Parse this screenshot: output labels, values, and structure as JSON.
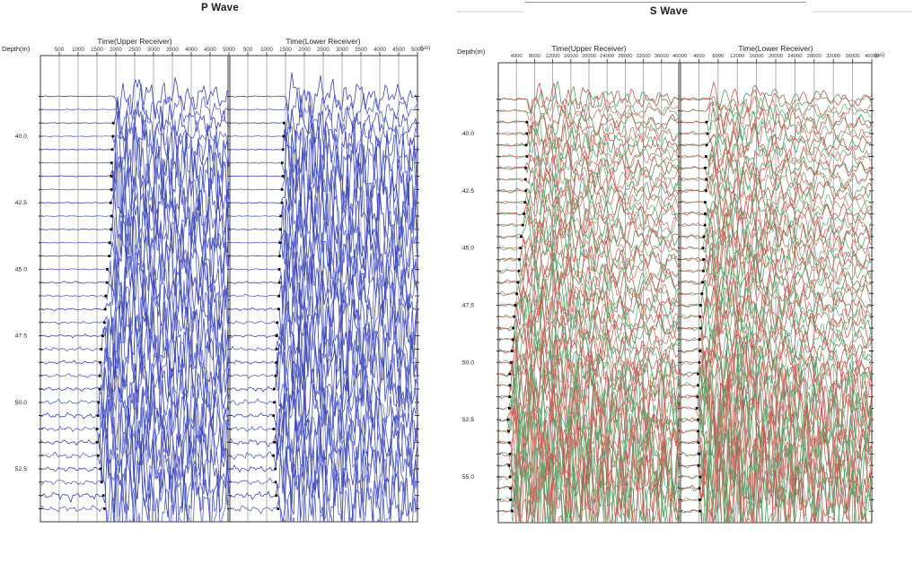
{
  "page": {
    "background": "#ffffff"
  },
  "panels": [
    {
      "key": "p",
      "title": "P Wave",
      "depth_axis_label": "Depth(m)",
      "upper_axis_title": "Time(Upper Receiver)",
      "lower_axis_title": "Time(Lower Receiver)",
      "time_unit_label": "(µs)"
    },
    {
      "key": "s",
      "title": "S Wave",
      "depth_axis_label": "Depth(m)",
      "upper_axis_title": "Time(Upper Receiver)",
      "lower_axis_title": "Time(Lower Receiver)",
      "time_unit_label": "(µs)"
    }
  ],
  "chart_data": [
    {
      "type": "line",
      "title": "P Wave",
      "subtype": "seismic-wiggle-traces",
      "x_axis": {
        "upper_label": "Time(Upper Receiver)",
        "lower_label": "Time(Lower Receiver)",
        "unit": "µs",
        "range": [
          0,
          5000
        ],
        "ticks": [
          500,
          1000,
          1500,
          2000,
          2500,
          3000,
          3500,
          4000,
          4500,
          5000
        ]
      },
      "y_axis": {
        "label": "Depth(m)",
        "tick_labels": [
          40.0,
          42.5,
          45.0,
          47.5,
          50.0,
          52.5
        ],
        "trace_depths_m": {
          "min": 38.5,
          "max": 54.0,
          "step": 0.5
        }
      },
      "style": {
        "trace_colors": [
          "#3a44b2",
          "#5763c7"
        ],
        "pick_color": "#0d0d0d",
        "grid_color": "#9e9e9e",
        "frame_color": "#3a3a3a"
      },
      "first_arrival_picks_us": {
        "upper": [
          1950,
          1941,
          1932,
          1923,
          1914,
          1905,
          1895,
          1886,
          1877,
          1868,
          1859,
          1850,
          1823,
          1795,
          1768,
          1740,
          1710,
          1680,
          1650,
          1620,
          1603,
          1585,
          1568,
          1550,
          1533,
          1517,
          1500,
          1538,
          1576,
          1614,
          1652,
          1690
        ],
        "lower": [
          1480,
          1469,
          1459,
          1448,
          1437,
          1427,
          1416,
          1405,
          1395,
          1384,
          1373,
          1363,
          1352,
          1341,
          1331,
          1320,
          1305,
          1290,
          1275,
          1260,
          1245,
          1230,
          1215,
          1200,
          1198,
          1195,
          1193,
          1190,
          1215,
          1240,
          1265,
          1290
        ]
      },
      "legend": "none",
      "grid": "vertical-only"
    },
    {
      "type": "line",
      "title": "S Wave",
      "subtype": "seismic-wiggle-traces-two-component",
      "x_axis": {
        "upper_label": "Time(Upper Receiver)",
        "lower_label": "Time(Lower Receiver)",
        "unit": "µs",
        "range": [
          0,
          40000
        ],
        "ticks": [
          4000,
          8000,
          12000,
          16000,
          20000,
          24000,
          28000,
          32000,
          36000,
          40000
        ]
      },
      "y_axis": {
        "label": "Depth(m)",
        "tick_labels": [
          40.0,
          42.5,
          45.0,
          47.5,
          50.0,
          52.5,
          55.0
        ],
        "trace_depths_m": {
          "min": 38.5,
          "max": 56.5,
          "step": 0.5
        }
      },
      "style": {
        "component_1_colors": [
          "#c4574f",
          "#d4726b"
        ],
        "component_2_colors": [
          "#4f9e5f",
          "#72b07f"
        ],
        "pick_color": "#0d0d0d",
        "grid_color": "#9e9e9e",
        "frame_color": "#3a3a3a"
      },
      "first_arrival_picks_us": {
        "upper": [
          6300,
          6275,
          6250,
          6225,
          6200,
          6175,
          6150,
          6125,
          6100,
          5860,
          5620,
          5380,
          5140,
          4900,
          4700,
          4500,
          4300,
          4100,
          3900,
          3680,
          3460,
          3240,
          3020,
          2800,
          2680,
          2560,
          2440,
          2320,
          2200,
          2275,
          2350,
          2425,
          2500,
          2625,
          2750,
          2875,
          3000
        ],
        "lower": [
          5800,
          5745,
          5691,
          5636,
          5582,
          5527,
          5473,
          5418,
          5364,
          5309,
          5255,
          5200,
          5100,
          5000,
          4900,
          4800,
          4700,
          4600,
          4500,
          4400,
          4313,
          4225,
          4138,
          4050,
          3963,
          3875,
          3788,
          3700,
          3767,
          3833,
          3900,
          3967,
          4033,
          4100,
          4167,
          4233,
          4300
        ]
      },
      "legend": "none",
      "grid": "vertical-only"
    }
  ]
}
